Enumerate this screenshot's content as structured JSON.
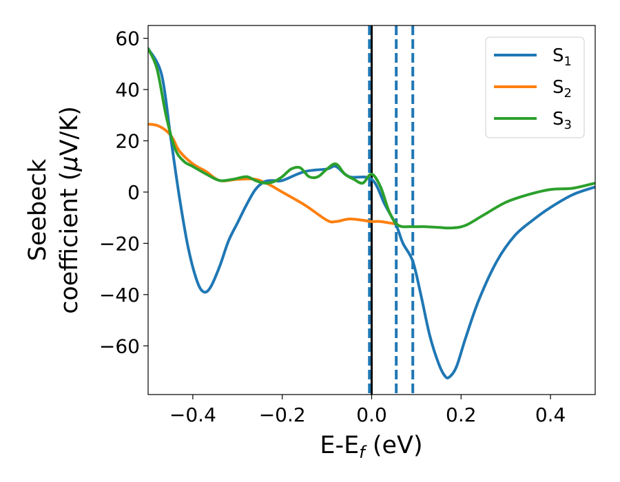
{
  "chart_data": {
    "type": "line",
    "xlabel": "E-E",
    "xlabel_sub": "f",
    "xlabel_unit": " (eV)",
    "ylabel_line1": "Seebeck",
    "ylabel_line2": "coefficient  (",
    "ylabel_mu": "μ",
    "ylabel_unit": "V/K)",
    "xlim": [
      -0.5,
      0.5
    ],
    "ylim": [
      -79,
      65
    ],
    "xticks": [
      -0.4,
      -0.2,
      0.0,
      0.2,
      0.4
    ],
    "xtick_labels": [
      "−0.4",
      "−0.2",
      "0.0",
      "0.2",
      "0.4"
    ],
    "yticks": [
      -60,
      -40,
      -20,
      0,
      20,
      40,
      60
    ],
    "ytick_labels": [
      "−60",
      "−40",
      "−20",
      "0",
      "20",
      "40",
      "60"
    ],
    "grid": false,
    "legend_position": "top-right",
    "vlines": [
      {
        "x": 0.0,
        "style": "solid",
        "color": "#000000"
      },
      {
        "x": -0.005,
        "style": "dashed",
        "color": "#1f77b4"
      },
      {
        "x": 0.055,
        "style": "dashed",
        "color": "#1f77b4"
      },
      {
        "x": 0.092,
        "style": "dashed",
        "color": "#1f77b4"
      }
    ],
    "series": [
      {
        "name": "S",
        "sub": "1",
        "color": "#1f77b4",
        "x": [
          -0.5,
          -0.47,
          -0.45,
          -0.43,
          -0.41,
          -0.39,
          -0.375,
          -0.36,
          -0.34,
          -0.32,
          -0.3,
          -0.28,
          -0.26,
          -0.24,
          -0.22,
          -0.2,
          -0.15,
          -0.1,
          -0.08,
          -0.05,
          0.0,
          0.03,
          0.055,
          0.07,
          0.092,
          0.11,
          0.13,
          0.15,
          0.165,
          0.175,
          0.19,
          0.21,
          0.24,
          0.28,
          0.32,
          0.36,
          0.4,
          0.45,
          0.5
        ],
        "y": [
          56,
          46,
          22,
          -2,
          -22,
          -35,
          -39,
          -37,
          -29,
          -19,
          -12,
          -5,
          1,
          4,
          4.5,
          4.5,
          8,
          9,
          10,
          6,
          5,
          -5,
          -13,
          -20,
          -27,
          -40,
          -56,
          -67,
          -72,
          -72,
          -68,
          -57,
          -42,
          -27,
          -17,
          -11,
          -6,
          -1,
          2
        ]
      },
      {
        "name": "S",
        "sub": "2",
        "color": "#ff7f0e",
        "x": [
          -0.5,
          -0.48,
          -0.46,
          -0.445,
          -0.43,
          -0.4,
          -0.37,
          -0.34,
          -0.3,
          -0.26,
          -0.23,
          -0.2,
          -0.15,
          -0.1,
          -0.08,
          -0.05,
          -0.02,
          0.0,
          0.02,
          0.055
        ],
        "y": [
          26.5,
          26,
          24,
          21,
          16,
          11,
          8,
          4.5,
          5,
          5,
          3,
          0,
          -5,
          -11,
          -11.5,
          -10.5,
          -11,
          -11.5,
          -11.5,
          -12.5
        ]
      },
      {
        "name": "S",
        "sub": "3",
        "color": "#2ca02c",
        "x": [
          -0.5,
          -0.48,
          -0.46,
          -0.44,
          -0.42,
          -0.4,
          -0.37,
          -0.34,
          -0.31,
          -0.28,
          -0.26,
          -0.24,
          -0.22,
          -0.2,
          -0.18,
          -0.16,
          -0.14,
          -0.12,
          -0.1,
          -0.08,
          -0.06,
          -0.04,
          -0.02,
          0.0,
          0.02,
          0.04,
          0.06,
          0.09,
          0.12,
          0.15,
          0.18,
          0.21,
          0.25,
          0.3,
          0.35,
          0.4,
          0.45,
          0.5
        ],
        "y": [
          56,
          48,
          30,
          17,
          12,
          10,
          7,
          4.5,
          5,
          6,
          4.5,
          3.5,
          4,
          6,
          9,
          9.5,
          6,
          6,
          9,
          11,
          7,
          5,
          3.5,
          7,
          2,
          -8,
          -13,
          -13.5,
          -13.5,
          -13.8,
          -14,
          -13,
          -9,
          -4,
          -1,
          1,
          1.5,
          3.5
        ]
      }
    ]
  }
}
